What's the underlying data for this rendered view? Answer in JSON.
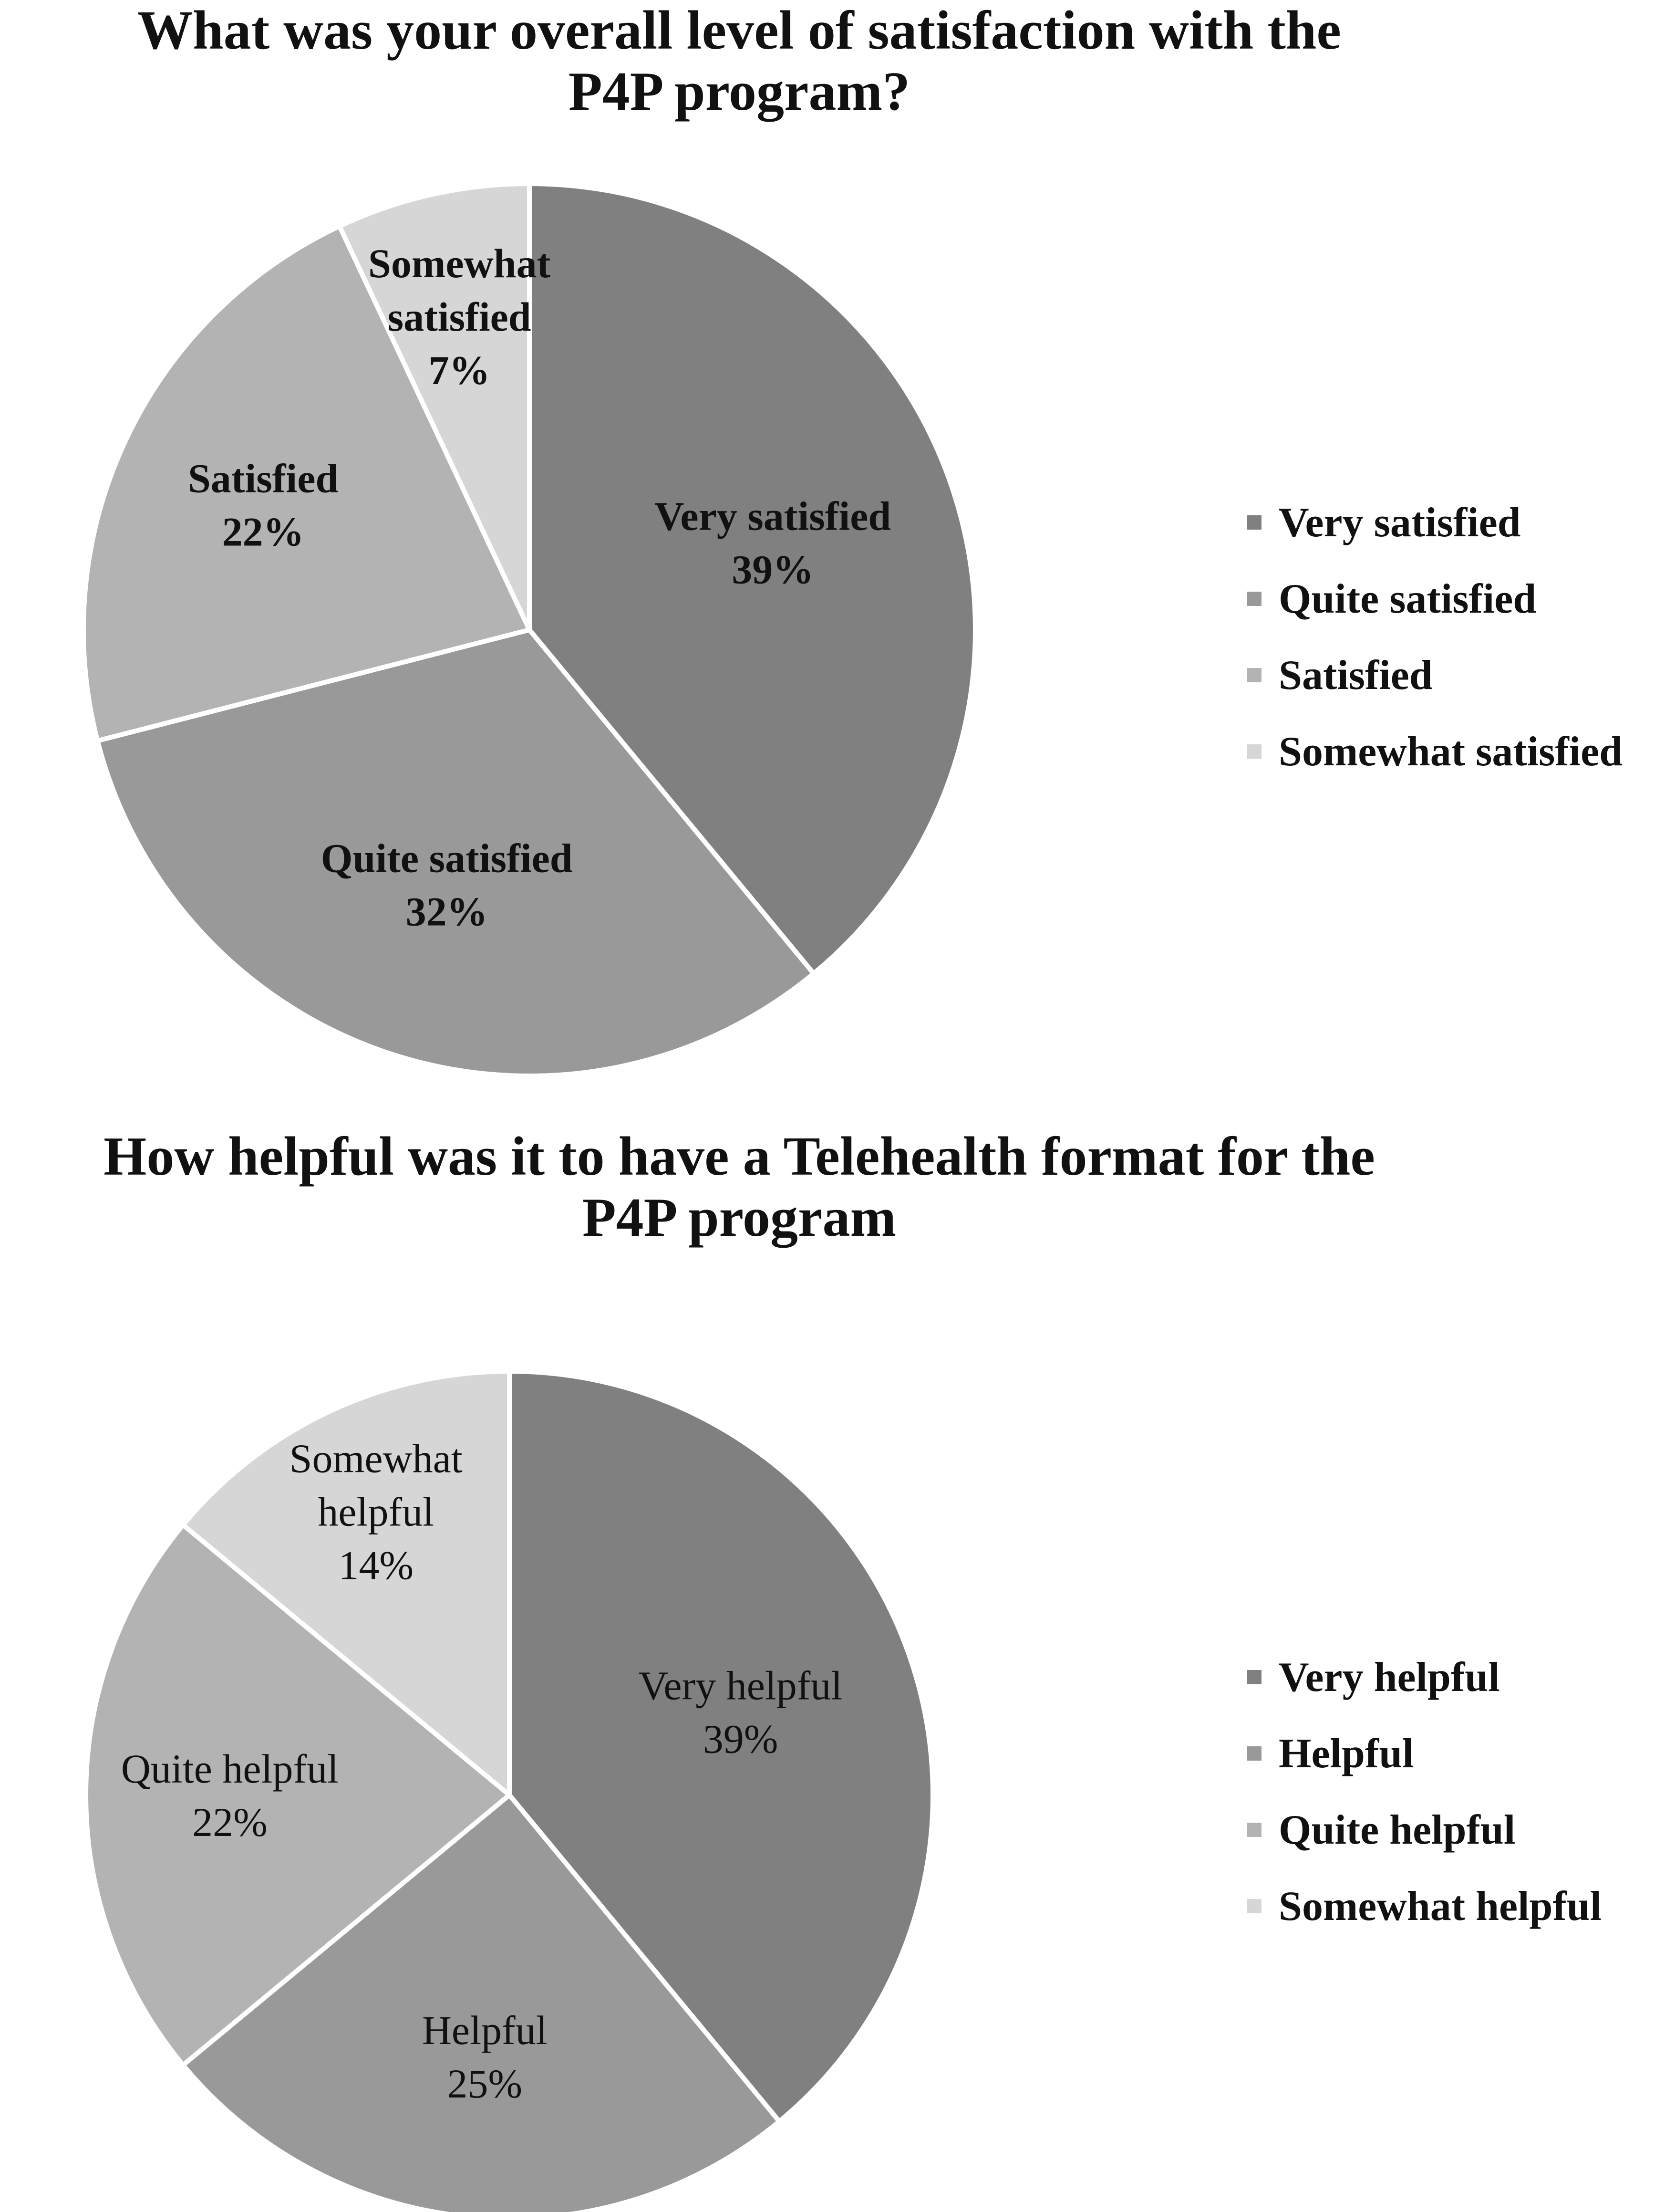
{
  "chart_data": [
    {
      "type": "pie",
      "title": [
        "What was your overall level of satisfaction with the",
        "P4P program?"
      ],
      "categories": [
        "Very satisfied",
        "Quite satisfied",
        "Satisfied",
        "Somewhat satisfied"
      ],
      "values": [
        39,
        32,
        22,
        7
      ],
      "data_labels": [
        [
          "Very satisfied",
          "39%"
        ],
        [
          "Quite satisfied",
          "32%"
        ],
        [
          "Satisfied",
          "22%"
        ],
        [
          "Somewhat",
          "satisfied",
          "7%"
        ]
      ],
      "colors": [
        "#808080",
        "#999999",
        "#b3b3b3",
        "#d6d6d6"
      ],
      "legend_position": "right",
      "start_angle": "12 o'clock",
      "direction": "clockwise"
    },
    {
      "type": "pie",
      "title": [
        "How helpful was it to have a Telehealth format for the",
        "P4P program"
      ],
      "categories": [
        "Very helpful",
        "Helpful",
        "Quite helpful",
        "Somewhat helpful"
      ],
      "values": [
        39,
        25,
        22,
        14
      ],
      "data_labels": [
        [
          "Very helpful",
          "39%"
        ],
        [
          "Helpful",
          "25%"
        ],
        [
          "Quite helpful",
          "22%"
        ],
        [
          "Somewhat",
          "helpful",
          "14%"
        ]
      ],
      "colors": [
        "#808080",
        "#999999",
        "#b3b3b3",
        "#d6d6d6"
      ],
      "legend_position": "right",
      "start_angle": "12 o'clock",
      "direction": "clockwise"
    }
  ]
}
